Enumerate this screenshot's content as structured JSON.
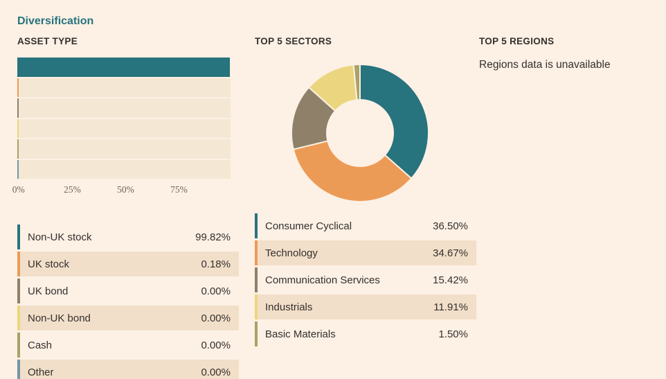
{
  "page": {
    "title": "Diversification",
    "background_color": "#FDF0E4",
    "text_color": "#33302E",
    "accent_color": "#26737E"
  },
  "palette": {
    "teal": "#27737E",
    "orange": "#EC9B56",
    "taupe": "#8F8069",
    "yellow": "#EBD67F",
    "olive": "#A8A269",
    "steel": "#7297A2",
    "row_alt_bg": "#F2DFC9",
    "bar_track_bg": "#F4E7D4",
    "axis_text_color": "#6F6459"
  },
  "sections": {
    "asset_type": {
      "heading": "ASSET TYPE",
      "items": [
        {
          "label": "Non-UK stock",
          "value": 99.82,
          "display": "99.82%",
          "color": "#27737E"
        },
        {
          "label": "UK stock",
          "value": 0.18,
          "display": "0.18%",
          "color": "#EC9B56"
        },
        {
          "label": "UK bond",
          "value": 0,
          "display": "0.00%",
          "color": "#8F8069"
        },
        {
          "label": "Non-UK bond",
          "value": 0,
          "display": "0.00%",
          "color": "#EBD67F"
        },
        {
          "label": "Cash",
          "value": 0,
          "display": "0.00%",
          "color": "#A8A269"
        },
        {
          "label": "Other",
          "value": 0,
          "display": "0.00%",
          "color": "#7297A2"
        }
      ],
      "axis_ticks": [
        {
          "label": "0%",
          "pos": 0
        },
        {
          "label": "25%",
          "pos": 25
        },
        {
          "label": "50%",
          "pos": 50
        },
        {
          "label": "75%",
          "pos": 75
        }
      ]
    },
    "sectors": {
      "heading": "TOP 5 SECTORS",
      "items": [
        {
          "label": "Consumer Cyclical",
          "value": 36.5,
          "display": "36.50%",
          "color": "#27737E"
        },
        {
          "label": "Technology",
          "value": 34.67,
          "display": "34.67%",
          "color": "#EC9B56"
        },
        {
          "label": "Communication Services",
          "value": 15.42,
          "display": "15.42%",
          "color": "#8F8069"
        },
        {
          "label": "Industrials",
          "value": 11.91,
          "display": "11.91%",
          "color": "#EBD67F"
        },
        {
          "label": "Basic Materials",
          "value": 1.5,
          "display": "1.50%",
          "color": "#A8A269"
        }
      ]
    },
    "regions": {
      "heading": "TOP 5 REGIONS",
      "message": "Regions data is unavailable"
    }
  },
  "chart_data": [
    {
      "type": "bar",
      "orientation": "horizontal",
      "title": "ASSET TYPE",
      "categories": [
        "Non-UK stock",
        "UK stock",
        "UK bond",
        "Non-UK bond",
        "Cash",
        "Other"
      ],
      "values": [
        99.82,
        0.18,
        0,
        0,
        0,
        0
      ],
      "xlabel": "",
      "ylabel": "",
      "xlim": [
        0,
        100
      ],
      "xticks": [
        "0%",
        "25%",
        "50%",
        "75%"
      ],
      "grid": false,
      "legend_position": "below"
    },
    {
      "type": "pie",
      "subtype": "donut",
      "title": "TOP 5 SECTORS",
      "categories": [
        "Consumer Cyclical",
        "Technology",
        "Communication Services",
        "Industrials",
        "Basic Materials"
      ],
      "values": [
        36.5,
        34.67,
        15.42,
        11.91,
        1.5
      ],
      "start_angle_deg": -90,
      "direction": "clockwise",
      "legend_position": "below"
    }
  ]
}
